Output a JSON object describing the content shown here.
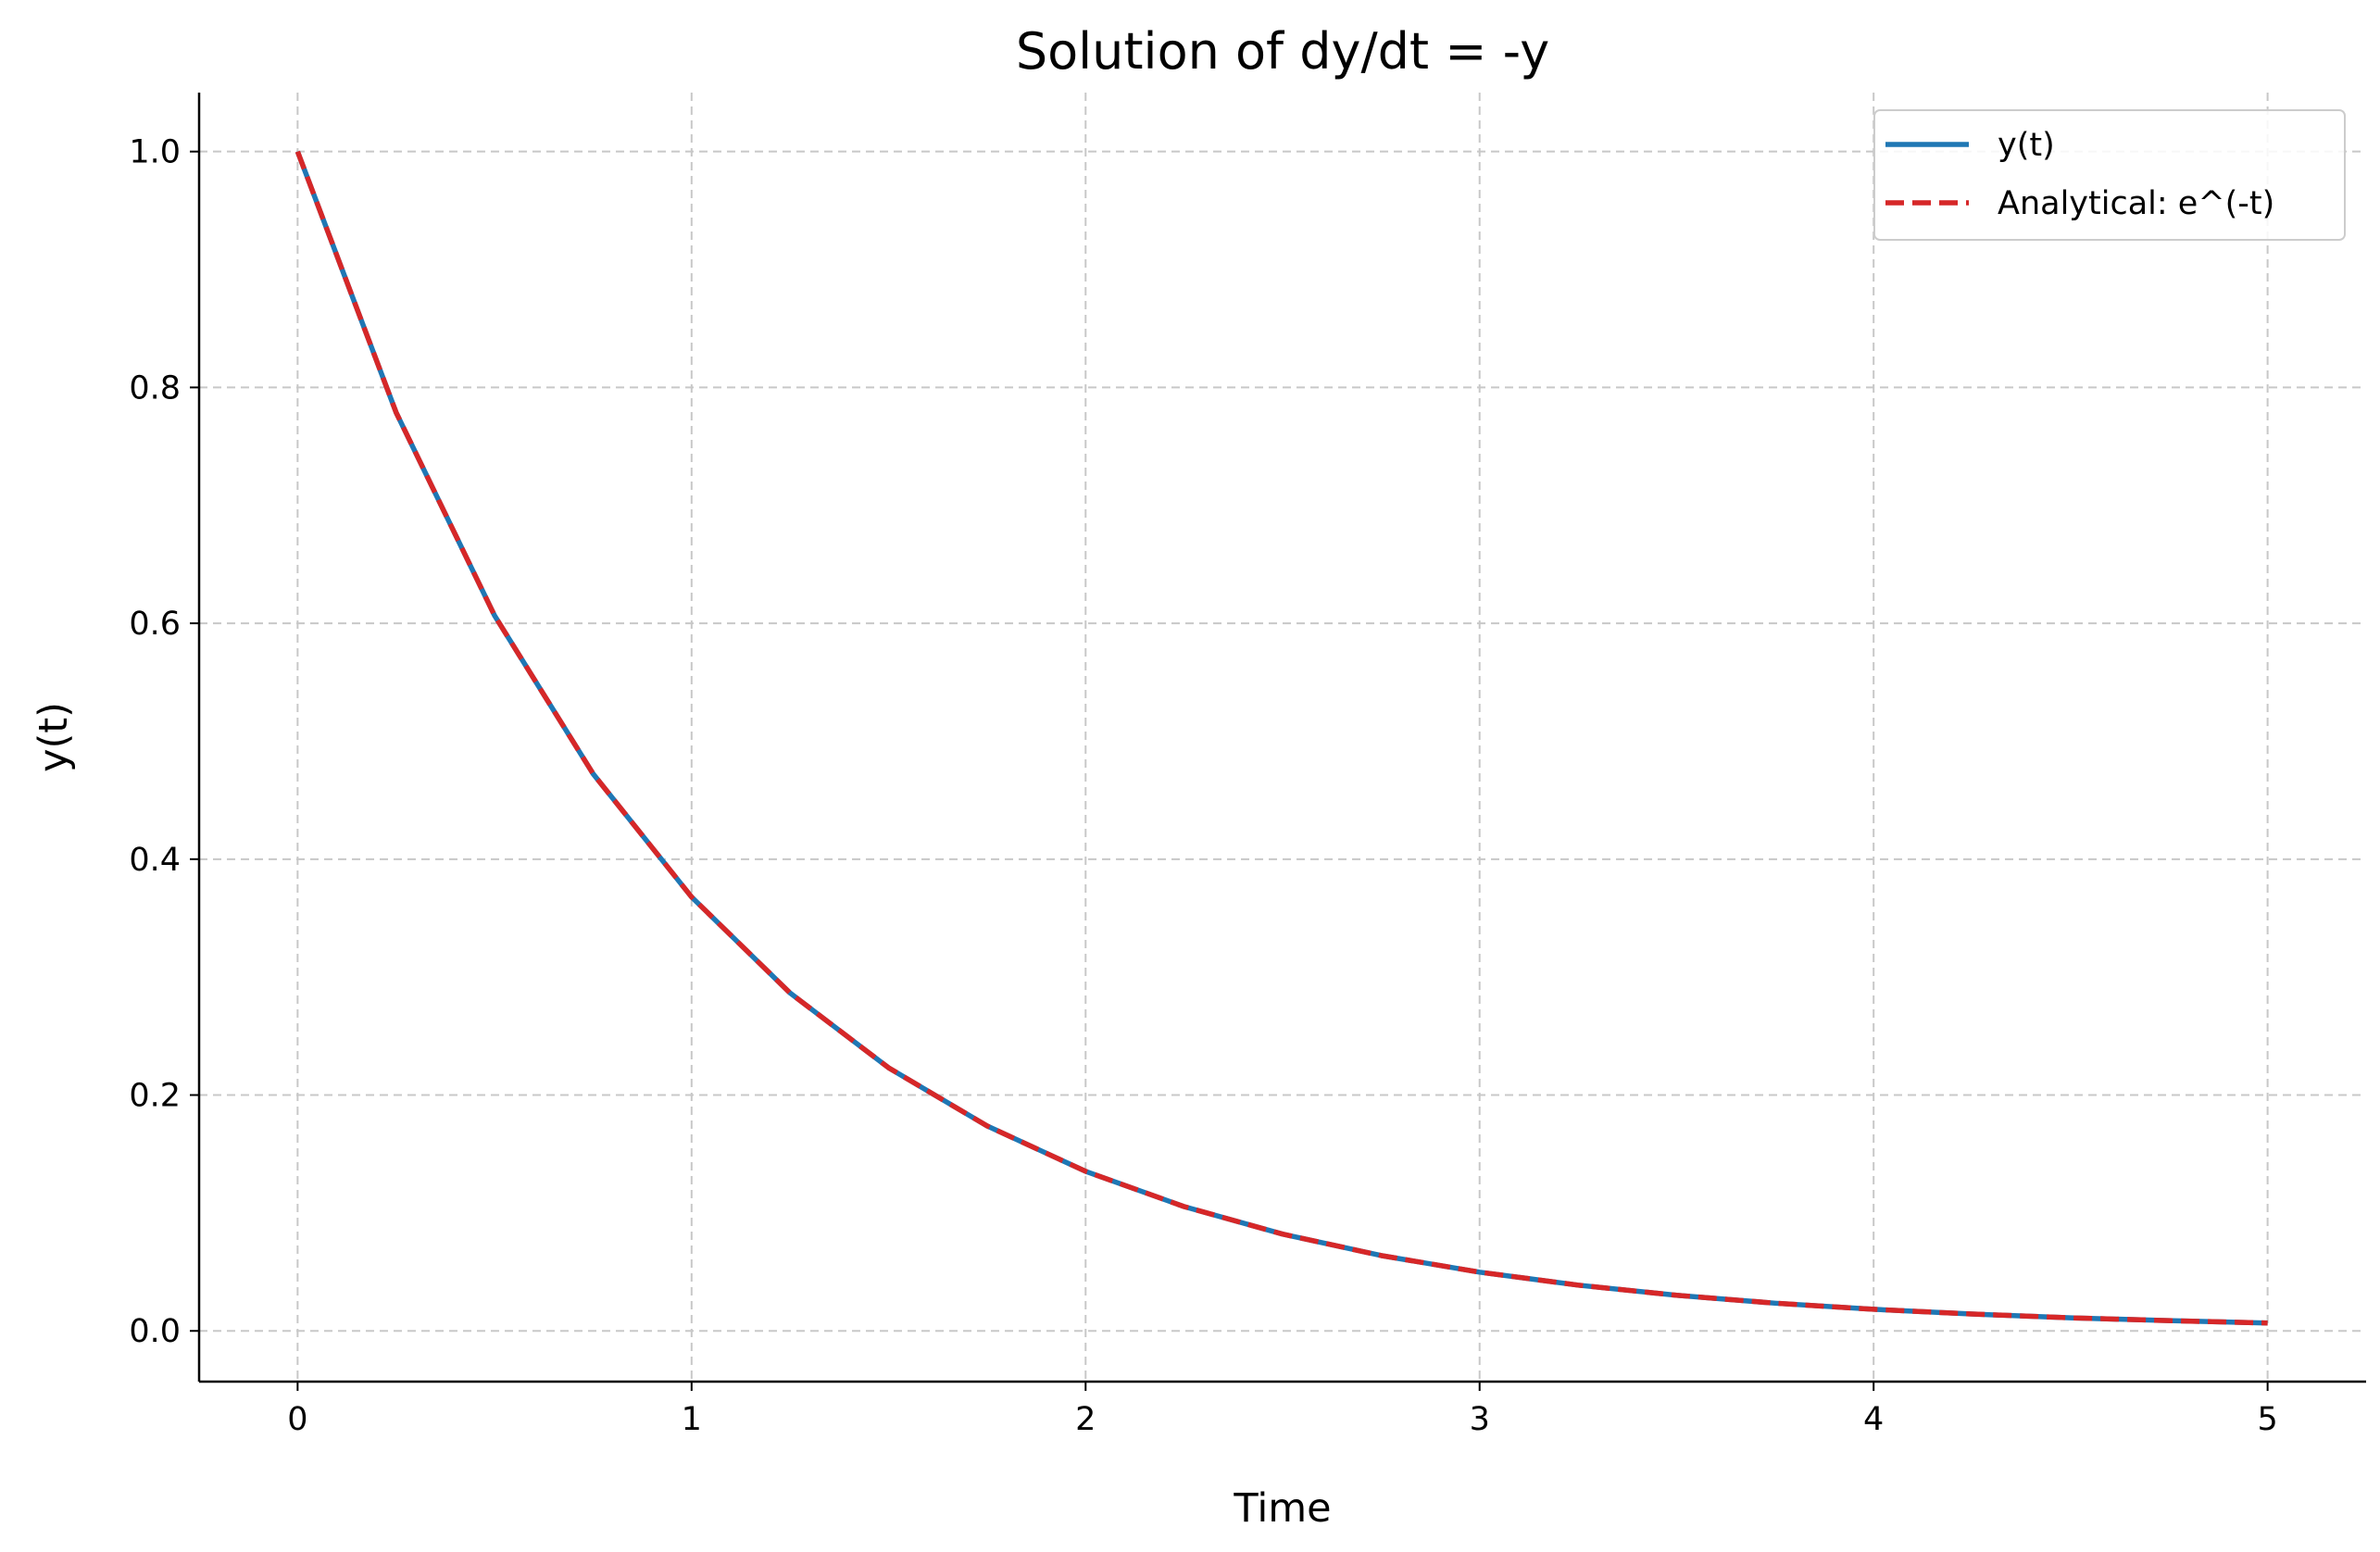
{
  "chart_data": {
    "type": "line",
    "title": "Solution of dy/dt = -y",
    "xlabel": "Time",
    "ylabel": "y(t)",
    "xlim": [
      -0.25,
      5.25
    ],
    "ylim": [
      -0.043,
      1.05
    ],
    "xticks": [
      0,
      1,
      2,
      3,
      4,
      5
    ],
    "xtick_labels": [
      "0",
      "1",
      "2",
      "3",
      "4",
      "5"
    ],
    "yticks": [
      0.0,
      0.2,
      0.4,
      0.6,
      0.8,
      1.0
    ],
    "ytick_labels": [
      "0.0",
      "0.2",
      "0.4",
      "0.6",
      "0.8",
      "1.0"
    ],
    "grid": true,
    "legend_position": "top-right",
    "x": [
      0,
      0.25,
      0.5,
      0.75,
      1.0,
      1.25,
      1.5,
      1.75,
      2.0,
      2.25,
      2.5,
      2.75,
      3.0,
      3.25,
      3.5,
      3.75,
      4.0,
      4.25,
      4.5,
      4.75,
      5.0
    ],
    "series": [
      {
        "name": "y(t)",
        "style": "solid",
        "color": "#1f77b4",
        "values": [
          1.0,
          0.7788,
          0.6065,
          0.4724,
          0.3679,
          0.2865,
          0.2231,
          0.1738,
          0.1353,
          0.1054,
          0.0821,
          0.0639,
          0.0498,
          0.0388,
          0.0302,
          0.0235,
          0.0183,
          0.0143,
          0.0111,
          0.0087,
          0.0067
        ]
      },
      {
        "name": "Analytical: e^(-t)",
        "style": "dashed",
        "color": "#d62728",
        "values": [
          1.0,
          0.7788,
          0.6065,
          0.4724,
          0.3679,
          0.2865,
          0.2231,
          0.1738,
          0.1353,
          0.1054,
          0.0821,
          0.0639,
          0.0498,
          0.0388,
          0.0302,
          0.0235,
          0.0183,
          0.0143,
          0.0111,
          0.0087,
          0.0067
        ]
      }
    ]
  }
}
